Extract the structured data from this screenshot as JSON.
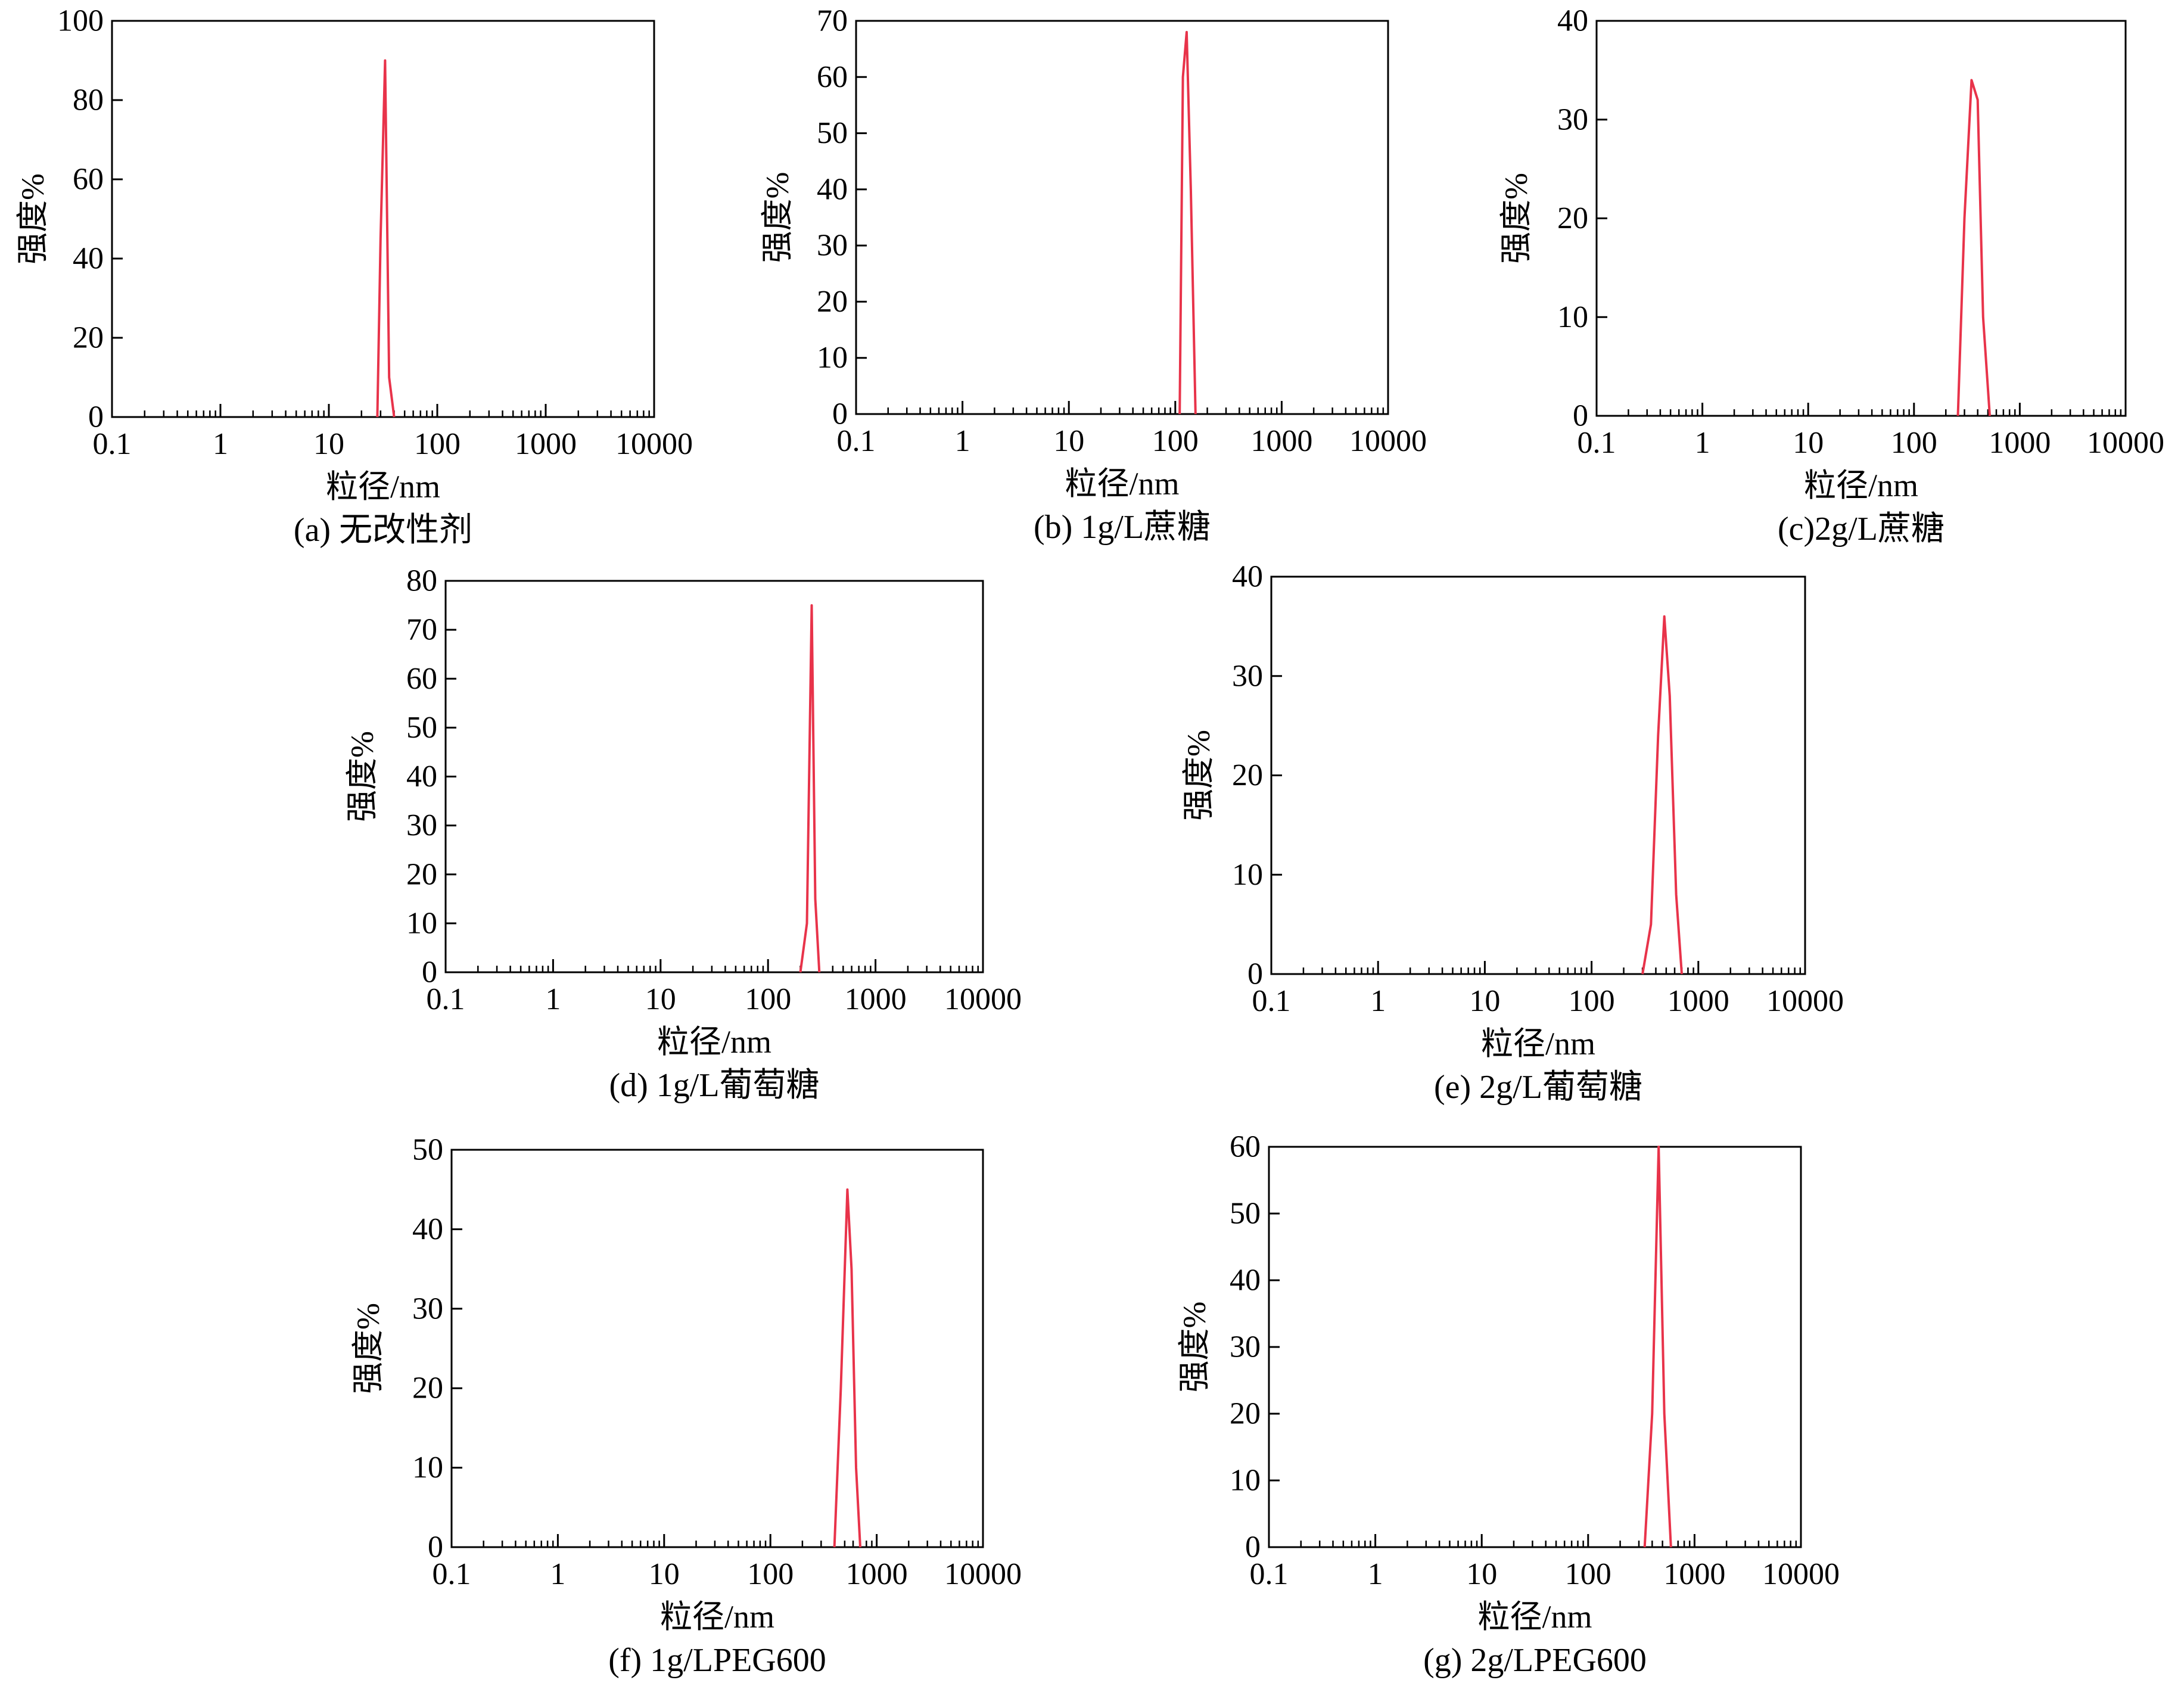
{
  "chart_data": [
    {
      "type": "line",
      "caption": "(a) 无改性剂",
      "xlabel": "粒径/nm",
      "ylabel": "强度%",
      "x_scale": "log",
      "xlim": [
        0.1,
        10000
      ],
      "x_ticks": [
        "0.1",
        "1",
        "10",
        "100",
        "1000",
        "10000"
      ],
      "ylim": [
        0,
        100
      ],
      "y_ticks": [
        "0",
        "20",
        "40",
        "60",
        "80",
        "100"
      ],
      "series": [
        {
          "color": "#e8334a",
          "x": [
            28,
            30,
            33,
            36,
            40
          ],
          "y": [
            0,
            45,
            90,
            10,
            0
          ]
        }
      ]
    },
    {
      "type": "line",
      "caption": "(b) 1g/L蔗糖",
      "xlabel": "粒径/nm",
      "ylabel": "强度%",
      "x_scale": "log",
      "xlim": [
        0.1,
        10000
      ],
      "x_ticks": [
        "0.1",
        "1",
        "10",
        "100",
        "1000",
        "10000"
      ],
      "ylim": [
        0,
        70
      ],
      "y_ticks": [
        "0",
        "10",
        "20",
        "30",
        "40",
        "50",
        "60",
        "70"
      ],
      "series": [
        {
          "color": "#e8334a",
          "x": [
            110,
            118,
            128,
            140,
            155
          ],
          "y": [
            0,
            60,
            68,
            40,
            0
          ]
        }
      ]
    },
    {
      "type": "line",
      "caption": "(c)2g/L蔗糖",
      "xlabel": "粒径/nm",
      "ylabel": "强度%",
      "x_scale": "log",
      "xlim": [
        0.1,
        10000
      ],
      "x_ticks": [
        "0.1",
        "1",
        "10",
        "100",
        "1000",
        "10000"
      ],
      "ylim": [
        0,
        40
      ],
      "y_ticks": [
        "0",
        "10",
        "20",
        "30",
        "40"
      ],
      "series": [
        {
          "color": "#e8334a",
          "x": [
            260,
            300,
            350,
            400,
            450,
            520
          ],
          "y": [
            0,
            20,
            34,
            32,
            10,
            0
          ]
        }
      ]
    },
    {
      "type": "line",
      "caption": "(d) 1g/L葡萄糖",
      "xlabel": "粒径/nm",
      "ylabel": "强度%",
      "x_scale": "log",
      "xlim": [
        0.1,
        10000
      ],
      "x_ticks": [
        "0.1",
        "1",
        "10",
        "100",
        "1000",
        "10000"
      ],
      "ylim": [
        0,
        80
      ],
      "y_ticks": [
        "0",
        "10",
        "20",
        "30",
        "40",
        "50",
        "60",
        "70",
        "80"
      ],
      "series": [
        {
          "color": "#e8334a",
          "x": [
            200,
            230,
            255,
            275,
            300
          ],
          "y": [
            0,
            10,
            75,
            15,
            0
          ]
        }
      ]
    },
    {
      "type": "line",
      "caption": "(e) 2g/L葡萄糖",
      "xlabel": "粒径/nm",
      "ylabel": "强度%",
      "x_scale": "log",
      "xlim": [
        0.1,
        10000
      ],
      "x_ticks": [
        "0.1",
        "1",
        "10",
        "100",
        "1000",
        "10000"
      ],
      "ylim": [
        0,
        40
      ],
      "y_ticks": [
        "0",
        "10",
        "20",
        "30",
        "40"
      ],
      "series": [
        {
          "color": "#e8334a",
          "x": [
            300,
            360,
            420,
            480,
            540,
            620,
            700
          ],
          "y": [
            0,
            5,
            24,
            36,
            28,
            8,
            0
          ]
        }
      ]
    },
    {
      "type": "line",
      "caption": "(f) 1g/LPEG600",
      "xlabel": "粒径/nm",
      "ylabel": "强度%",
      "x_scale": "log",
      "xlim": [
        0.1,
        10000
      ],
      "x_ticks": [
        "0.1",
        "1",
        "10",
        "100",
        "1000",
        "10000"
      ],
      "ylim": [
        0,
        50
      ],
      "y_ticks": [
        "0",
        "10",
        "20",
        "30",
        "40",
        "50"
      ],
      "series": [
        {
          "color": "#e8334a",
          "x": [
            400,
            460,
            530,
            580,
            640,
            700
          ],
          "y": [
            0,
            20,
            45,
            35,
            10,
            0
          ]
        }
      ]
    },
    {
      "type": "line",
      "caption": "(g) 2g/LPEG600",
      "xlabel": "粒径/nm",
      "ylabel": "强度%",
      "x_scale": "log",
      "xlim": [
        0.1,
        10000
      ],
      "x_ticks": [
        "0.1",
        "1",
        "10",
        "100",
        "1000",
        "10000"
      ],
      "ylim": [
        0,
        60
      ],
      "y_ticks": [
        "0",
        "10",
        "20",
        "30",
        "40",
        "50",
        "60"
      ],
      "series": [
        {
          "color": "#e8334a",
          "x": [
            340,
            400,
            460,
            520,
            600
          ],
          "y": [
            0,
            20,
            60,
            20,
            0
          ]
        }
      ]
    }
  ]
}
